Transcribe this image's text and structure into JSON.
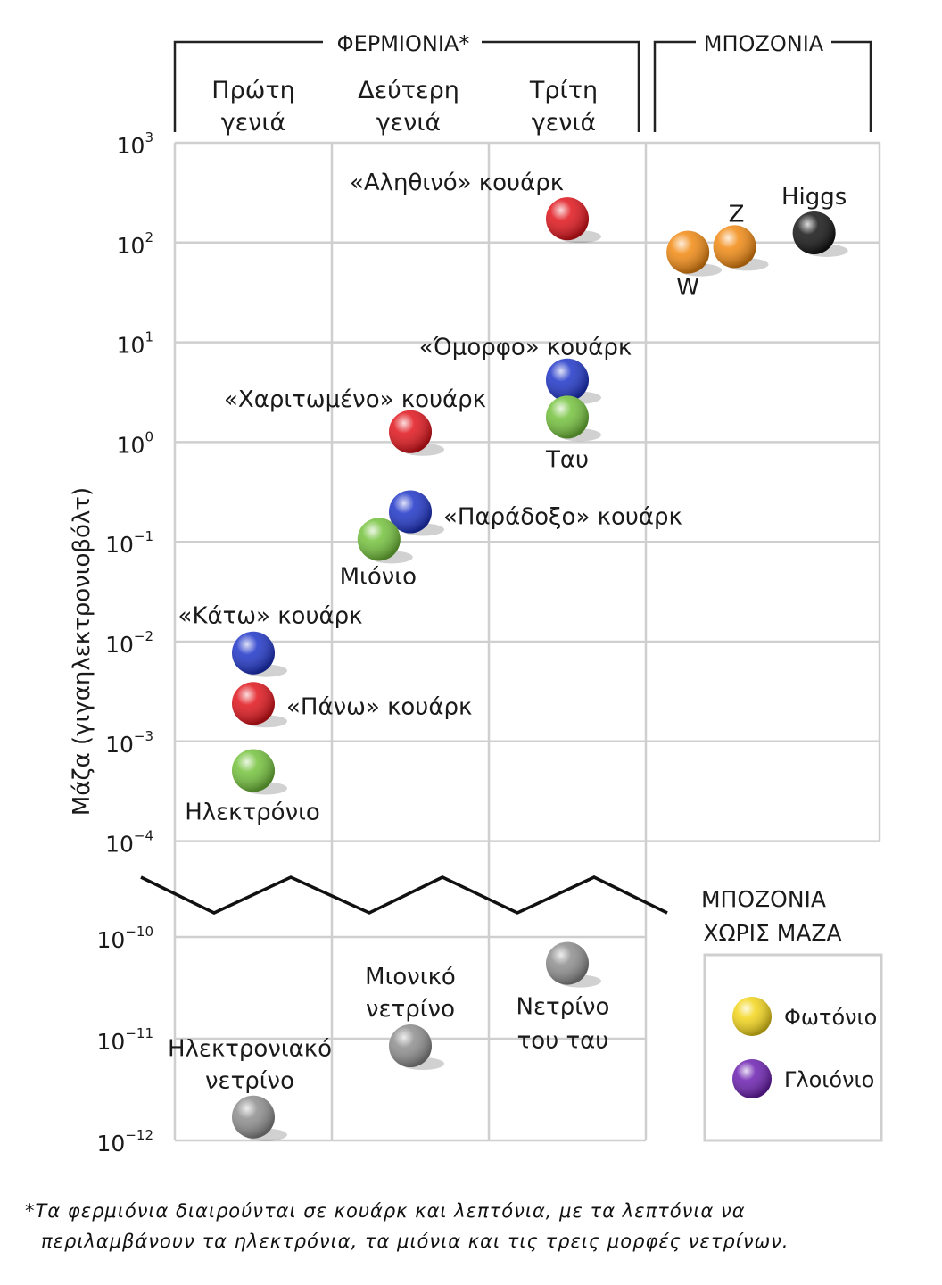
{
  "header": {
    "fermions": "ΦΕΡΜΙΟΝΙΑ*",
    "bosons": "ΜΠΟΖΟΝΙΑ",
    "generations": [
      {
        "line1": "Πρώτη",
        "line2": "γενιά"
      },
      {
        "line1": "Δεύτερη",
        "line2": "γενιά"
      },
      {
        "line1": "Τρίτη",
        "line2": "γενιά"
      }
    ]
  },
  "colors": {
    "quark_up_type": "#e0141b",
    "quark_down_type": "#1f35c8",
    "lepton": "#74c23c",
    "neutrino": "#8e8e8e",
    "weak_boson": "#f28a12",
    "higgs": "#141414",
    "photon": "#f3d51a",
    "gluon": "#6b1fb0",
    "grid": "#cfcfcf"
  },
  "chart_data": {
    "type": "scatter",
    "ylabel": "Μάζα (γιγαηλεκτρονιοβόλτ)",
    "yscale": "log",
    "ylim_upper": [
      0.0001,
      1000
    ],
    "ylim_lower": [
      1e-12,
      1e-10
    ],
    "y_ticks": [
      {
        "base": "10",
        "exp": "3",
        "value": 1000
      },
      {
        "base": "10",
        "exp": "2",
        "value": 100
      },
      {
        "base": "10",
        "exp": "1",
        "value": 10
      },
      {
        "base": "10",
        "exp": "0",
        "value": 1
      },
      {
        "base": "10",
        "exp": "−1",
        "value": 0.1
      },
      {
        "base": "10",
        "exp": "−2",
        "value": 0.01
      },
      {
        "base": "10",
        "exp": "−3",
        "value": 0.001
      },
      {
        "base": "10",
        "exp": "−4",
        "value": 0.0001
      },
      {
        "base": "10",
        "exp": "−10",
        "value": 1e-10
      },
      {
        "base": "10",
        "exp": "−11",
        "value": 1e-11
      },
      {
        "base": "10",
        "exp": "−12",
        "value": 1e-12
      }
    ],
    "columns": [
      "Πρώτη γενιά",
      "Δεύτερη γενιά",
      "Τρίτη γενιά",
      "Μποζόνια"
    ],
    "points": [
      {
        "id": "top-quark",
        "label": "«Αληθινό» κουάρκ",
        "column": 2,
        "offset": 0.5,
        "mass": 173,
        "color": "quark_up_type"
      },
      {
        "id": "higgs",
        "label": "Higgs",
        "column": 3,
        "offset": 0.72,
        "mass": 125,
        "color": "higgs"
      },
      {
        "id": "z-boson",
        "label": "Z",
        "column": 3,
        "offset": 0.38,
        "mass": 91,
        "color": "weak_boson"
      },
      {
        "id": "w-boson",
        "label": "W",
        "column": 3,
        "offset": 0.18,
        "mass": 80,
        "color": "weak_boson"
      },
      {
        "id": "bottom-quark",
        "label": "«Όμορφο» κουάρκ",
        "column": 2,
        "offset": 0.5,
        "mass": 4.2,
        "color": "quark_down_type"
      },
      {
        "id": "tau",
        "label": "Ταυ",
        "column": 2,
        "offset": 0.5,
        "mass": 1.78,
        "color": "lepton"
      },
      {
        "id": "charm-quark",
        "label": "«Χαριτωμένο» κουάρκ",
        "column": 1,
        "offset": 0.5,
        "mass": 1.27,
        "color": "quark_up_type"
      },
      {
        "id": "strange-quark",
        "label": "«Παράδοξο» κουάρκ",
        "column": 1,
        "offset": 0.5,
        "mass": 0.2,
        "color": "quark_down_type"
      },
      {
        "id": "muon",
        "label": "Μιόνιο",
        "column": 1,
        "offset": 0.3,
        "mass": 0.106,
        "color": "lepton"
      },
      {
        "id": "down-quark",
        "label": "«Κάτω» κουάρκ",
        "column": 0,
        "offset": 0.5,
        "mass": 0.0077,
        "color": "quark_down_type"
      },
      {
        "id": "up-quark",
        "label": "«Πάνω» κουάρκ",
        "column": 0,
        "offset": 0.5,
        "mass": 0.0024,
        "color": "quark_up_type"
      },
      {
        "id": "electron",
        "label": "Ηλεκτρόνιο",
        "column": 0,
        "offset": 0.5,
        "mass": 0.00051,
        "color": "lepton"
      },
      {
        "id": "tau-neutrino",
        "label": "Νετρίνο του ταυ",
        "column": 2,
        "offset": 0.5,
        "mass": 5.5e-11,
        "color": "neutrino"
      },
      {
        "id": "muon-neutrino",
        "label": "Μιονικό νετρίνο",
        "column": 1,
        "offset": 0.5,
        "mass": 8.5e-12,
        "color": "neutrino"
      },
      {
        "id": "electron-neutrino",
        "label": "Ηλεκτρονιακό νετρίνο",
        "column": 0,
        "offset": 0.5,
        "mass": 1.7e-12,
        "color": "neutrino"
      }
    ],
    "massless_bosons": {
      "title_line1": "ΜΠΟΖΟΝΙΑ",
      "title_line2": "ΧΩΡΙΣ ΜΑΖΑ",
      "items": [
        {
          "label": "Φωτόνιο",
          "color": "photon"
        },
        {
          "label": "Γλοιόνιο",
          "color": "gluon"
        }
      ]
    }
  },
  "footnote": {
    "line1": "*Τα φερμιόνια διαιρούνται σε κουάρκ και λεπτόνια, με τα λεπτόνια να",
    "line2": "περιλαμβάνουν τα ηλεκτρόνια, τα μιόνια και τις τρεις μορφές νετρίνων."
  }
}
